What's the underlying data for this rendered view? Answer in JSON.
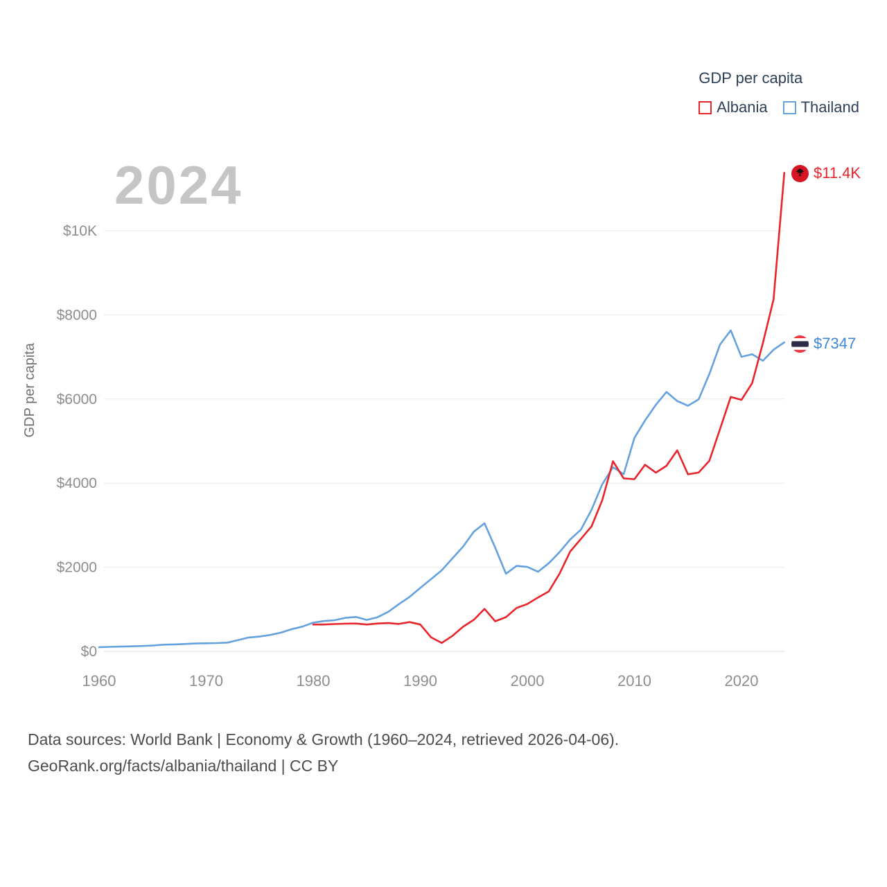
{
  "watermark": "2024",
  "legend": {
    "title": "GDP per capita",
    "series": [
      {
        "label": "Albania",
        "color": "#e8232a"
      },
      {
        "label": "Thailand",
        "color": "#64a1df"
      }
    ]
  },
  "y_axis": {
    "title": "GDP per capita",
    "ticks": [
      "$0",
      "$2000",
      "$4000",
      "$6000",
      "$8000",
      "$10K"
    ],
    "tick_values": [
      0,
      2000,
      4000,
      6000,
      8000,
      10000
    ]
  },
  "x_axis": {
    "ticks": [
      "1960",
      "1970",
      "1980",
      "1990",
      "2000",
      "2010",
      "2020"
    ],
    "tick_values": [
      1960,
      1970,
      1980,
      1990,
      2000,
      2010,
      2020
    ]
  },
  "end_labels": [
    {
      "series": "Albania",
      "text": "$11.4K",
      "color": "#e8232a"
    },
    {
      "series": "Thailand",
      "text": "$7347",
      "color": "#3c87d8"
    }
  ],
  "footer": {
    "line1": "Data sources: World Bank | Economy & Growth (1960–2024, retrieved 2026-04-06).",
    "line2": "GeoRank.org/facts/albania/thailand | CC BY"
  },
  "chart_data": {
    "type": "line",
    "title": "GDP per capita",
    "xlabel": "",
    "ylabel": "GDP per capita",
    "x_range": [
      1960,
      2024
    ],
    "y_range": [
      0,
      11400
    ],
    "grid": "horizontal",
    "legend_position": "top-right",
    "series": [
      {
        "name": "Thailand",
        "color": "#64a1df",
        "x": [
          1960,
          1961,
          1962,
          1963,
          1964,
          1965,
          1966,
          1967,
          1968,
          1969,
          1970,
          1971,
          1972,
          1973,
          1974,
          1975,
          1976,
          1977,
          1978,
          1979,
          1980,
          1981,
          1982,
          1983,
          1984,
          1985,
          1986,
          1987,
          1988,
          1989,
          1990,
          1991,
          1992,
          1993,
          1994,
          1995,
          1996,
          1997,
          1998,
          1999,
          2000,
          2001,
          2002,
          2003,
          2004,
          2005,
          2006,
          2007,
          2008,
          2009,
          2010,
          2011,
          2012,
          2013,
          2014,
          2015,
          2016,
          2017,
          2018,
          2019,
          2020,
          2021,
          2022,
          2023,
          2024
        ],
        "values": [
          101,
          107,
          113,
          120,
          128,
          138,
          160,
          167,
          176,
          187,
          193,
          197,
          210,
          270,
          331,
          352,
          392,
          446,
          529,
          590,
          683,
          722,
          742,
          798,
          818,
          748,
          813,
          937,
          1123,
          1295,
          1509,
          1716,
          1927,
          2209,
          2491,
          2847,
          3044,
          2468,
          1846,
          2033,
          2008,
          1893,
          2096,
          2359,
          2660,
          2894,
          3369,
          3973,
          4379,
          4213,
          5076,
          5492,
          5861,
          6168,
          5952,
          5840,
          5993,
          6593,
          7296,
          7631,
          7002,
          7066,
          6909,
          7171,
          7347
        ]
      },
      {
        "name": "Albania",
        "color": "#e8232a",
        "x": [
          1980,
          1981,
          1982,
          1983,
          1984,
          1985,
          1986,
          1987,
          1988,
          1989,
          1990,
          1991,
          1992,
          1993,
          1994,
          1995,
          1996,
          1997,
          1998,
          1999,
          2000,
          2001,
          2002,
          2003,
          2004,
          2005,
          2006,
          2007,
          2008,
          2009,
          2010,
          2011,
          2012,
          2013,
          2014,
          2015,
          2016,
          2017,
          2018,
          2019,
          2020,
          2021,
          2022,
          2023,
          2024
        ],
        "values": [
          639,
          640,
          650,
          659,
          662,
          639,
          662,
          673,
          652,
          697,
          639,
          336,
          201,
          367,
          587,
          751,
          1010,
          717,
          814,
          1033,
          1127,
          1282,
          1425,
          1846,
          2374,
          2674,
          2973,
          3595,
          4521,
          4114,
          4094,
          4437,
          4248,
          4413,
          4780,
          4210,
          4252,
          4531,
          5288,
          6050,
          5980,
          6377,
          7329,
          8368,
          11378
        ]
      }
    ]
  }
}
